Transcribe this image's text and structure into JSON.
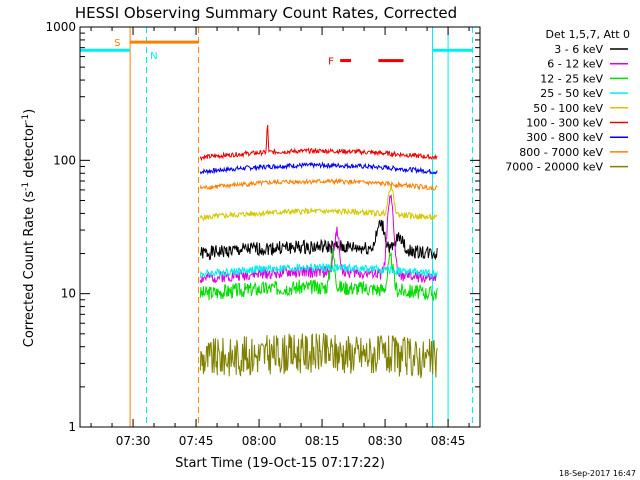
{
  "chart_data": {
    "type": "line",
    "title": "HESSI Observing Summary Count Rates, Corrected",
    "xlabel": "Start Time (19-Oct-15 07:17:22)",
    "ylabel": "Corrected Count Rate (s⁻¹ detector⁻¹)",
    "ylabel_parts": {
      "main": "Corrected Count Rate (s",
      "sup1": "-1",
      "mid": " detector",
      "sup2": "-1",
      "end": ")"
    },
    "timestamp": "18-Sep-2017 16:47",
    "y_scale": "log",
    "ylim": [
      1,
      1000
    ],
    "xlim_min": [
      17.37,
      112.6
    ],
    "x_ticks": [
      {
        "min": 30,
        "label": "07:30"
      },
      {
        "min": 45,
        "label": "07:45"
      },
      {
        "min": 60,
        "label": "08:00"
      },
      {
        "min": 75,
        "label": "08:15"
      },
      {
        "min": 90,
        "label": "08:30"
      },
      {
        "min": 105,
        "label": "08:45"
      }
    ],
    "y_ticks": [
      {
        "value": 1,
        "label": "1"
      },
      {
        "value": 10,
        "label": "10"
      },
      {
        "value": 100,
        "label": "100"
      },
      {
        "value": 1000,
        "label": "1000"
      }
    ],
    "legend_header": "Det 1,5,7, Att 0",
    "legend_position": "right",
    "series": [
      {
        "name": "3 - 6 keV",
        "color": "#000000",
        "level": 20,
        "noise": 0.12,
        "seed": 1,
        "bumps": [
          {
            "t": 89,
            "w": 1.2,
            "a": 0.55
          },
          {
            "t": 93.5,
            "w": 1.0,
            "a": 0.3
          }
        ],
        "start": 46,
        "end": 102.5
      },
      {
        "name": "6 - 12 keV",
        "color": "#e000e0",
        "level": 13,
        "noise": 0.1,
        "seed": 2,
        "bumps": [
          {
            "t": 78.5,
            "w": 0.8,
            "a": 1.0
          },
          {
            "t": 91.3,
            "w": 0.9,
            "a": 2.7
          }
        ],
        "start": 46,
        "end": 102.5
      },
      {
        "name": "12 - 25 keV",
        "color": "#00dd00",
        "level": 10,
        "noise": 0.13,
        "seed": 3,
        "bumps": [
          {
            "t": 77.5,
            "w": 0.7,
            "a": 0.8
          },
          {
            "t": 91.3,
            "w": 0.8,
            "a": 0.7
          }
        ],
        "start": 46,
        "end": 102.5
      },
      {
        "name": "25 - 50 keV",
        "color": "#00eeee",
        "level": 14,
        "noise": 0.07,
        "seed": 4,
        "bumps": [],
        "start": 46,
        "end": 102.5
      },
      {
        "name": "50 - 100 keV",
        "color": "#d4c800",
        "level": 37,
        "noise": 0.05,
        "seed": 5,
        "bumps": [
          {
            "t": 91.4,
            "w": 0.8,
            "a": 0.6
          }
        ],
        "start": 46,
        "end": 102.5
      },
      {
        "name": "100 - 300 keV",
        "color": "#ee0000",
        "level": 105,
        "noise": 0.04,
        "seed": 6,
        "bumps": [
          {
            "t": 62,
            "w": 0.2,
            "a": 0.6
          }
        ],
        "start": 46,
        "end": 102.5
      },
      {
        "name": "300 - 800 keV",
        "color": "#0000ee",
        "level": 82,
        "noise": 0.04,
        "seed": 7,
        "bumps": [],
        "start": 46,
        "end": 102.5
      },
      {
        "name": "800 - 7000 keV",
        "color": "#ff8000",
        "level": 62,
        "noise": 0.04,
        "seed": 8,
        "bumps": [],
        "start": 46,
        "end": 102.5
      },
      {
        "name": "7000 - 20000 keV",
        "color": "#808000",
        "level": 3.2,
        "noise": 0.35,
        "seed": 9,
        "bumps": [],
        "start": 46,
        "end": 102.5
      }
    ],
    "flags": [
      {
        "label": "S",
        "color": "#ff8000",
        "y_value": 770,
        "segments": [
          [
            29.3,
            45.6
          ]
        ]
      },
      {
        "label": "N",
        "color": "#00eeee",
        "y_value": 670,
        "segments": [
          [
            17.37,
            29.3
          ],
          [
            101.3,
            110.8
          ]
        ]
      },
      {
        "label": "F",
        "color": "#ee0000",
        "y_value": 560,
        "segments": [
          [
            79.3,
            81.9
          ],
          [
            88.4,
            94.4
          ]
        ]
      }
    ],
    "vlines": [
      {
        "min": 29.3,
        "color": "#ff8000",
        "style": "solid"
      },
      {
        "min": 33.2,
        "color": "#00eeee",
        "style": "dashed"
      },
      {
        "min": 45.6,
        "color": "#ff8000",
        "style": "dashed"
      },
      {
        "min": 101.3,
        "color": "#00eeee",
        "style": "solid"
      },
      {
        "min": 105.0,
        "color": "#00eeee",
        "style": "solid"
      },
      {
        "min": 110.8,
        "color": "#00eeee",
        "style": "dashed"
      }
    ]
  }
}
